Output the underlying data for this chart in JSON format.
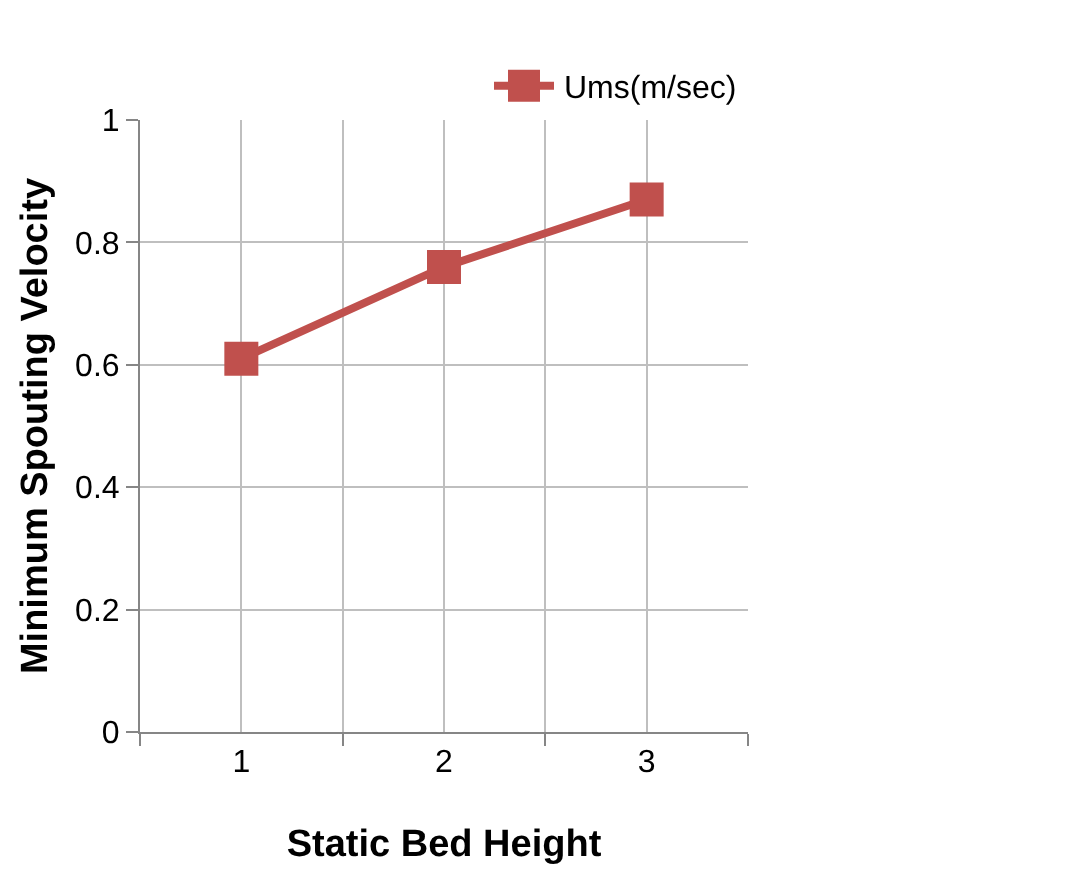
{
  "chart_data": {
    "type": "line",
    "xlabel": "Static Bed Height",
    "ylabel": "Minimum Spouting Velocity",
    "categories": [
      "1",
      "2",
      "3"
    ],
    "series": [
      {
        "name": "Ums(m/sec)",
        "color": "#c0504d",
        "values": [
          0.61,
          0.76,
          0.87
        ]
      }
    ],
    "ylim": [
      0,
      1
    ],
    "yticks": [
      0,
      0.2,
      0.4,
      0.6,
      0.8,
      1
    ],
    "grid": true,
    "legend": "top right",
    "marker": "square",
    "line_style": "solid"
  }
}
